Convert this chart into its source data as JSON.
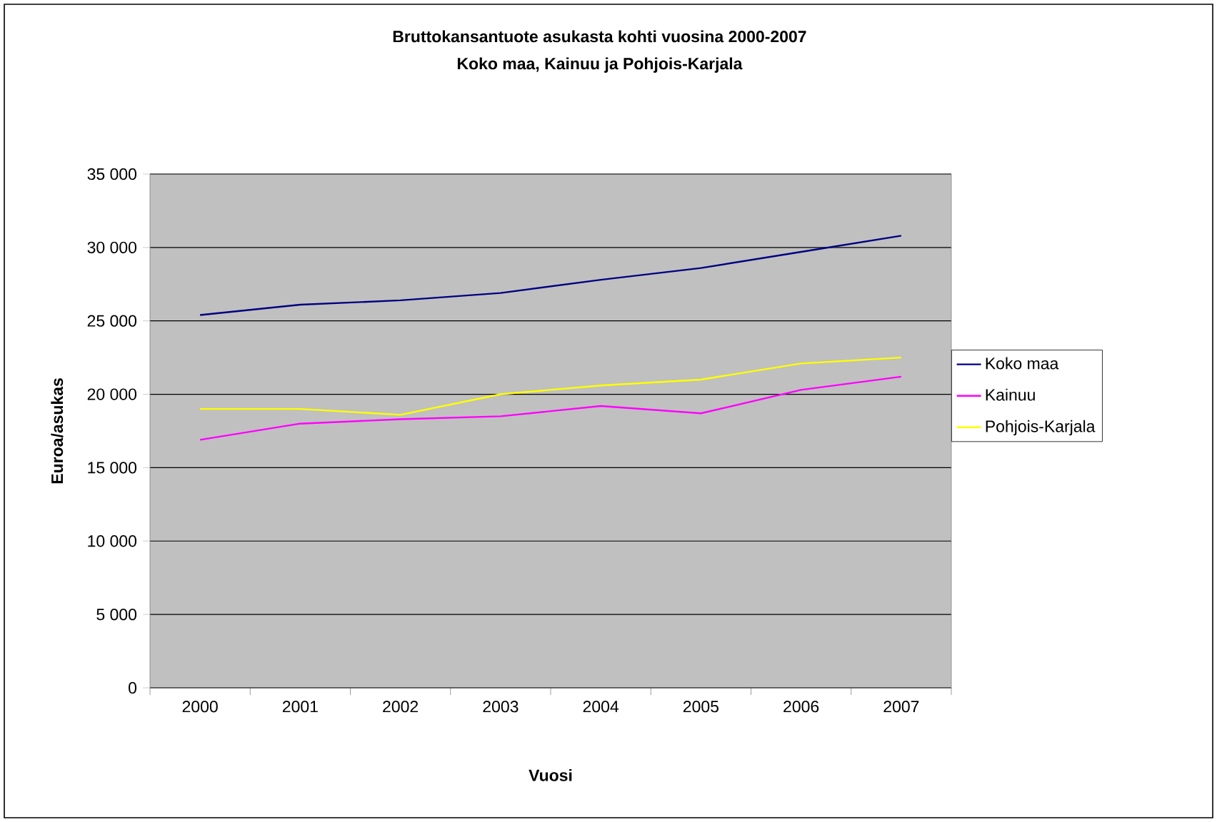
{
  "chart_data": {
    "type": "line",
    "title": "Bruttokansantuote asukasta kohti vuosina 2000-2007\nKoko maa, Kainuu ja Pohjois-Karjala",
    "xlabel": "Vuosi",
    "ylabel": "Euroa/asukas",
    "categories": [
      "2000",
      "2001",
      "2002",
      "2003",
      "2004",
      "2005",
      "2006",
      "2007"
    ],
    "series": [
      {
        "name": "Koko maa",
        "color": "#000080",
        "values": [
          25400,
          26100,
          26400,
          26900,
          27800,
          28600,
          29700,
          30800
        ]
      },
      {
        "name": "Kainuu",
        "color": "#ff00ff",
        "values": [
          16900,
          18000,
          18300,
          18500,
          19200,
          18700,
          20300,
          21200
        ]
      },
      {
        "name": "Pohjois-Karjala",
        "color": "#ffff00",
        "values": [
          19000,
          19000,
          18600,
          20000,
          20600,
          21000,
          22100,
          22500
        ]
      }
    ],
    "ylim": [
      0,
      35000
    ],
    "yticks": [
      0,
      {
        "value": 5000,
        "label": "5 000"
      },
      {
        "value": 10000,
        "label": "10 000"
      },
      {
        "value": 15000,
        "label": "15 000"
      },
      {
        "value": 20000,
        "label": "20 000"
      },
      {
        "value": 25000,
        "label": "25 000"
      },
      {
        "value": 30000,
        "label": "30 000"
      },
      {
        "value": 35000,
        "label": "35 000"
      }
    ],
    "grid": "y",
    "legend": "right",
    "marker": "none",
    "line_style": "solid"
  }
}
